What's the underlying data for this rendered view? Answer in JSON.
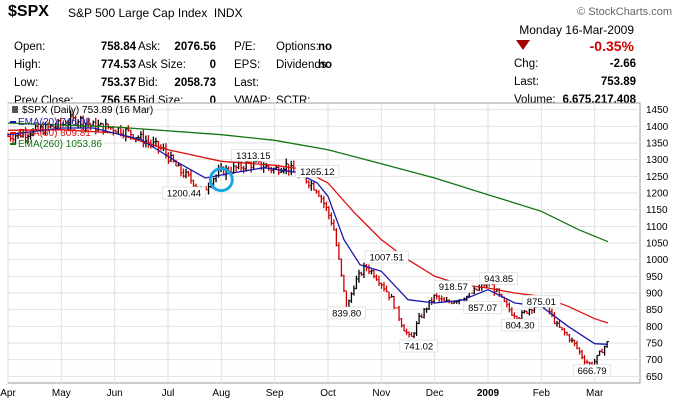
{
  "header": {
    "symbol": "$SPX",
    "description": "S&P 500 Large Cap Index",
    "exchange": "INDX",
    "brand": "© StockCharts.com",
    "date": "Monday  16-Mar-2009",
    "change_pct": "-0.35%",
    "stats_left": [
      {
        "label": "Open:",
        "value": "758.84"
      },
      {
        "label": "High:",
        "value": "774.53"
      },
      {
        "label": "Low:",
        "value": "753.37"
      },
      {
        "label": "Prev Close:",
        "value": "756.55"
      }
    ],
    "stats_mid": [
      {
        "label": "Ask:",
        "value": "2076.56"
      },
      {
        "label": "Ask Size:",
        "value": "0"
      },
      {
        "label": "Bid:",
        "value": "2058.73"
      },
      {
        "label": "Bid Size:",
        "value": "0"
      }
    ],
    "stats_mid2": [
      {
        "label": "P/E:",
        "value": ""
      },
      {
        "label": "EPS:",
        "value": ""
      },
      {
        "label": "Last:",
        "value": ""
      },
      {
        "label": "VWAP:",
        "value": ""
      }
    ],
    "stats_mid3": [
      {
        "label": "Options:",
        "value": "no"
      },
      {
        "label": "Dividends:",
        "value": "no"
      },
      {
        "label": "",
        "value": ""
      },
      {
        "label": "SCTR:",
        "value": ""
      }
    ],
    "stats_right": [
      {
        "label": "Chg:",
        "value": "-2.66"
      },
      {
        "label": "Last:",
        "value": "753.89"
      },
      {
        "label": "Volume:",
        "value": "6,675,217,408"
      }
    ]
  },
  "chart_data": {
    "type": "bar",
    "title": "$SPX (Daily) 753.89 (16 Mar)",
    "y_ticks": [
      650,
      700,
      750,
      800,
      850,
      900,
      950,
      1000,
      1050,
      1100,
      1150,
      1200,
      1250,
      1300,
      1350,
      1400,
      1450
    ],
    "ylim": [
      630,
      1470
    ],
    "x_ticks": [
      "Apr",
      "May",
      "Jun",
      "Jul",
      "Aug",
      "Sep",
      "Oct",
      "Nov",
      "Dec",
      "2009",
      "Feb",
      "Mar"
    ],
    "series": [
      {
        "name": "EMA(20) 746.08",
        "color": "#1a1aa8"
      },
      {
        "name": "EMA(60) 809.81",
        "color": "#dd1111"
      },
      {
        "name": "EMA(260) 1053.86",
        "color": "#117711"
      }
    ],
    "price_points": [
      {
        "x": 0.0,
        "y": 1370
      },
      {
        "x": 0.5,
        "y": 1385
      },
      {
        "x": 1.0,
        "y": 1405
      },
      {
        "x": 1.3,
        "y": 1424
      },
      {
        "x": 1.6,
        "y": 1400
      },
      {
        "x": 2.0,
        "y": 1395
      },
      {
        "x": 2.3,
        "y": 1380
      },
      {
        "x": 2.6,
        "y": 1355
      },
      {
        "x": 2.9,
        "y": 1330
      },
      {
        "x": 3.2,
        "y": 1270
      },
      {
        "x": 3.5,
        "y": 1230
      },
      {
        "x": 3.65,
        "y": 1200
      },
      {
        "x": 3.8,
        "y": 1240
      },
      {
        "x": 4.0,
        "y": 1265
      },
      {
        "x": 4.3,
        "y": 1275
      },
      {
        "x": 4.5,
        "y": 1289
      },
      {
        "x": 4.8,
        "y": 1280
      },
      {
        "x": 5.0,
        "y": 1270
      },
      {
        "x": 5.2,
        "y": 1285
      },
      {
        "x": 5.4,
        "y": 1255
      },
      {
        "x": 5.6,
        "y": 1240
      },
      {
        "x": 5.8,
        "y": 1210
      },
      {
        "x": 5.95,
        "y": 1160
      },
      {
        "x": 6.1,
        "y": 1100
      },
      {
        "x": 6.2,
        "y": 1000
      },
      {
        "x": 6.3,
        "y": 900
      },
      {
        "x": 6.35,
        "y": 850
      },
      {
        "x": 6.5,
        "y": 930
      },
      {
        "x": 6.7,
        "y": 980
      },
      {
        "x": 6.85,
        "y": 960
      },
      {
        "x": 7.0,
        "y": 930
      },
      {
        "x": 7.2,
        "y": 880
      },
      {
        "x": 7.4,
        "y": 800
      },
      {
        "x": 7.55,
        "y": 760
      },
      {
        "x": 7.7,
        "y": 820
      },
      {
        "x": 7.9,
        "y": 870
      },
      {
        "x": 8.0,
        "y": 890
      },
      {
        "x": 8.2,
        "y": 870
      },
      {
        "x": 8.4,
        "y": 880
      },
      {
        "x": 8.6,
        "y": 890
      },
      {
        "x": 8.8,
        "y": 910
      },
      {
        "x": 9.0,
        "y": 935
      },
      {
        "x": 9.15,
        "y": 905
      },
      {
        "x": 9.3,
        "y": 870
      },
      {
        "x": 9.45,
        "y": 840
      },
      {
        "x": 9.6,
        "y": 830
      },
      {
        "x": 9.8,
        "y": 855
      },
      {
        "x": 10.0,
        "y": 870
      },
      {
        "x": 10.15,
        "y": 845
      },
      {
        "x": 10.3,
        "y": 800
      },
      {
        "x": 10.5,
        "y": 770
      },
      {
        "x": 10.65,
        "y": 740
      },
      {
        "x": 10.8,
        "y": 700
      },
      {
        "x": 10.95,
        "y": 682
      },
      {
        "x": 11.1,
        "y": 720
      },
      {
        "x": 11.25,
        "y": 754
      }
    ],
    "ema20": [
      {
        "x": 0.0,
        "y": 1375
      },
      {
        "x": 1.0,
        "y": 1395
      },
      {
        "x": 1.6,
        "y": 1395
      },
      {
        "x": 2.5,
        "y": 1360
      },
      {
        "x": 3.2,
        "y": 1290
      },
      {
        "x": 3.7,
        "y": 1245
      },
      {
        "x": 4.2,
        "y": 1260
      },
      {
        "x": 4.8,
        "y": 1276
      },
      {
        "x": 5.4,
        "y": 1262
      },
      {
        "x": 5.8,
        "y": 1230
      },
      {
        "x": 6.0,
        "y": 1190
      },
      {
        "x": 6.3,
        "y": 1060
      },
      {
        "x": 6.6,
        "y": 985
      },
      {
        "x": 7.0,
        "y": 965
      },
      {
        "x": 7.5,
        "y": 880
      },
      {
        "x": 8.0,
        "y": 870
      },
      {
        "x": 8.5,
        "y": 878
      },
      {
        "x": 9.0,
        "y": 910
      },
      {
        "x": 9.5,
        "y": 870
      },
      {
        "x": 10.0,
        "y": 860
      },
      {
        "x": 10.5,
        "y": 800
      },
      {
        "x": 11.0,
        "y": 748
      },
      {
        "x": 11.25,
        "y": 746
      }
    ],
    "ema60": [
      {
        "x": 0.0,
        "y": 1388
      },
      {
        "x": 1.0,
        "y": 1390
      },
      {
        "x": 2.0,
        "y": 1380
      },
      {
        "x": 3.0,
        "y": 1330
      },
      {
        "x": 4.0,
        "y": 1295
      },
      {
        "x": 5.0,
        "y": 1283
      },
      {
        "x": 5.5,
        "y": 1272
      },
      {
        "x": 6.0,
        "y": 1230
      },
      {
        "x": 6.5,
        "y": 1140
      },
      {
        "x": 7.0,
        "y": 1060
      },
      {
        "x": 7.5,
        "y": 1000
      },
      {
        "x": 8.0,
        "y": 950
      },
      {
        "x": 8.5,
        "y": 925
      },
      {
        "x": 9.0,
        "y": 915
      },
      {
        "x": 9.5,
        "y": 900
      },
      {
        "x": 10.0,
        "y": 890
      },
      {
        "x": 10.5,
        "y": 860
      },
      {
        "x": 11.0,
        "y": 823
      },
      {
        "x": 11.25,
        "y": 810
      }
    ],
    "ema260": [
      {
        "x": 0.0,
        "y": 1410
      },
      {
        "x": 2.0,
        "y": 1398
      },
      {
        "x": 4.0,
        "y": 1375
      },
      {
        "x": 5.0,
        "y": 1358
      },
      {
        "x": 6.0,
        "y": 1330
      },
      {
        "x": 7.0,
        "y": 1288
      },
      {
        "x": 8.0,
        "y": 1245
      },
      {
        "x": 9.0,
        "y": 1195
      },
      {
        "x": 10.0,
        "y": 1145
      },
      {
        "x": 10.7,
        "y": 1090
      },
      {
        "x": 11.25,
        "y": 1054
      }
    ],
    "annotations": [
      {
        "text": "1313.15",
        "x": 4.6,
        "y": 1313
      },
      {
        "text": "1200.44",
        "x": 3.3,
        "y": 1200
      },
      {
        "text": "1265.12",
        "x": 5.8,
        "y": 1265
      },
      {
        "text": "1007.51",
        "x": 7.1,
        "y": 1008
      },
      {
        "text": "839.80",
        "x": 6.35,
        "y": 840
      },
      {
        "text": "741.02",
        "x": 7.7,
        "y": 741
      },
      {
        "text": "918.57",
        "x": 8.35,
        "y": 919
      },
      {
        "text": "943.85",
        "x": 9.2,
        "y": 944
      },
      {
        "text": "857.07",
        "x": 8.9,
        "y": 857
      },
      {
        "text": "875.01",
        "x": 10.0,
        "y": 875
      },
      {
        "text": "804.30",
        "x": 9.6,
        "y": 804
      },
      {
        "text": "666.79",
        "x": 10.95,
        "y": 667
      }
    ],
    "highlight": {
      "x": 4.0,
      "y": 1240
    }
  }
}
